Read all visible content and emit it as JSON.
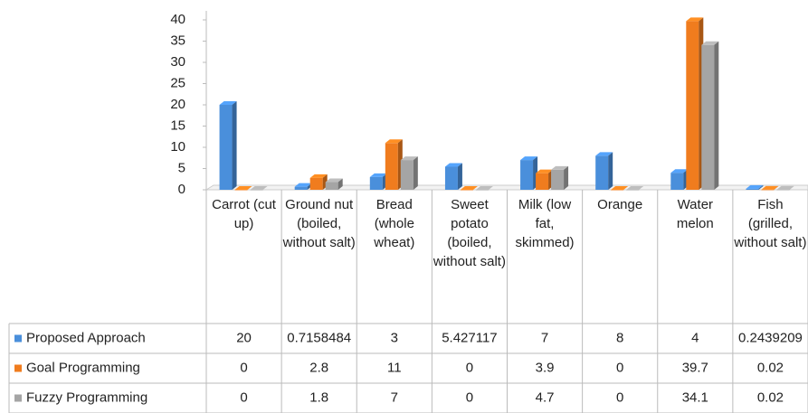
{
  "chart_data": {
    "type": "bar",
    "categories": [
      "Carrot (cut up)",
      "Ground nut (boiled, without salt)",
      "Bread (whole wheat)",
      "Sweet potato (boiled, without salt)",
      "Milk (low fat, skimmed)",
      "Orange",
      "Water melon",
      "Fish (grilled, without salt)"
    ],
    "series": [
      {
        "name": "Proposed Approach",
        "color": "#4a8fdb",
        "values": [
          20,
          0.7158484,
          3,
          5.427117,
          7,
          8,
          4,
          0.2439209
        ]
      },
      {
        "name": "Goal Programming",
        "color": "#f07c1e",
        "values": [
          0,
          2.8,
          11,
          0,
          3.9,
          0,
          39.7,
          0.02
        ]
      },
      {
        "name": "Fuzzy Programming",
        "color": "#a5a5a5",
        "values": [
          0,
          1.8,
          7,
          0,
          4.7,
          0,
          34.1,
          0.02
        ]
      }
    ],
    "ylim": [
      0,
      40
    ],
    "yticks": [
      0,
      5,
      10,
      15,
      20,
      25,
      30,
      35,
      40
    ],
    "grid": false,
    "legend": "table"
  }
}
